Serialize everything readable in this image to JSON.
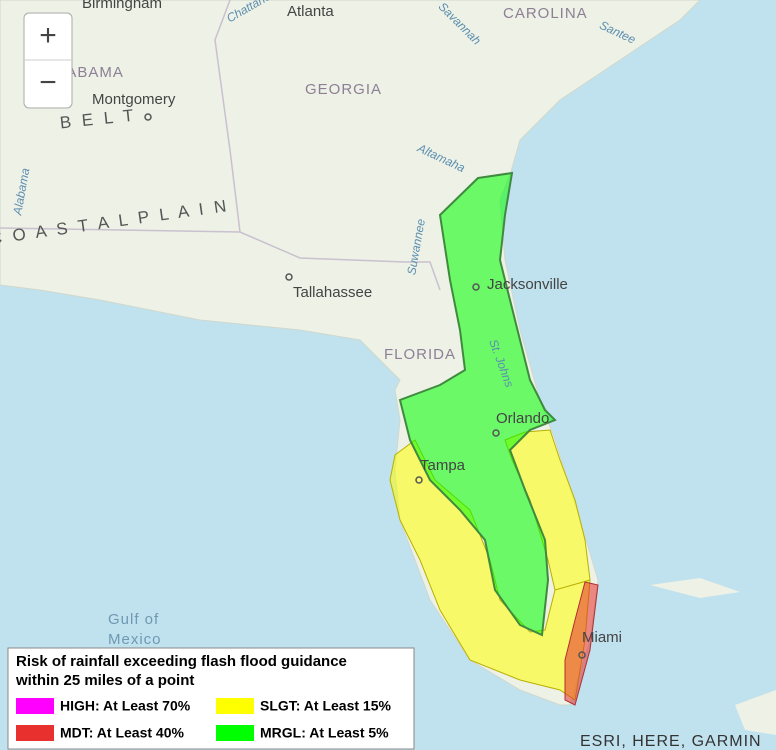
{
  "zoom_controls": {
    "zoom_in": "+",
    "zoom_out": "−"
  },
  "map": {
    "places": [
      "Birmingham",
      "Atlanta",
      "Montgomery",
      "Tallahassee",
      "Jacksonville",
      "Orlando",
      "Tampa",
      "Miami"
    ],
    "regions": [
      "ALABAMA",
      "GEORGIA",
      "CAROLINA",
      "FLORIDA",
      "B E L T",
      "C O A S T A L   P L A I N"
    ],
    "water": [
      "Gulf of",
      "Mexico",
      "Altamaha",
      "Suwannee",
      "St. Johns",
      "Santee",
      "Alabama",
      "Chattahoochee",
      "Savannah"
    ]
  },
  "legend": {
    "title": [
      "Risk of rainfall exceeding flash flood guidance",
      "within 25 miles of a point"
    ],
    "items": [
      {
        "label": "HIGH: At Least 70%",
        "color": "#ff00ff"
      },
      {
        "label": "SLGT: At Least 15%",
        "color": "#ffff00"
      },
      {
        "label": "MDT: At Least 40%",
        "color": "#e8302e"
      },
      {
        "label": "MRGL: At Least 5%",
        "color": "#00ff00"
      }
    ]
  },
  "attribution": "ESRI, HERE, GARMIN"
}
